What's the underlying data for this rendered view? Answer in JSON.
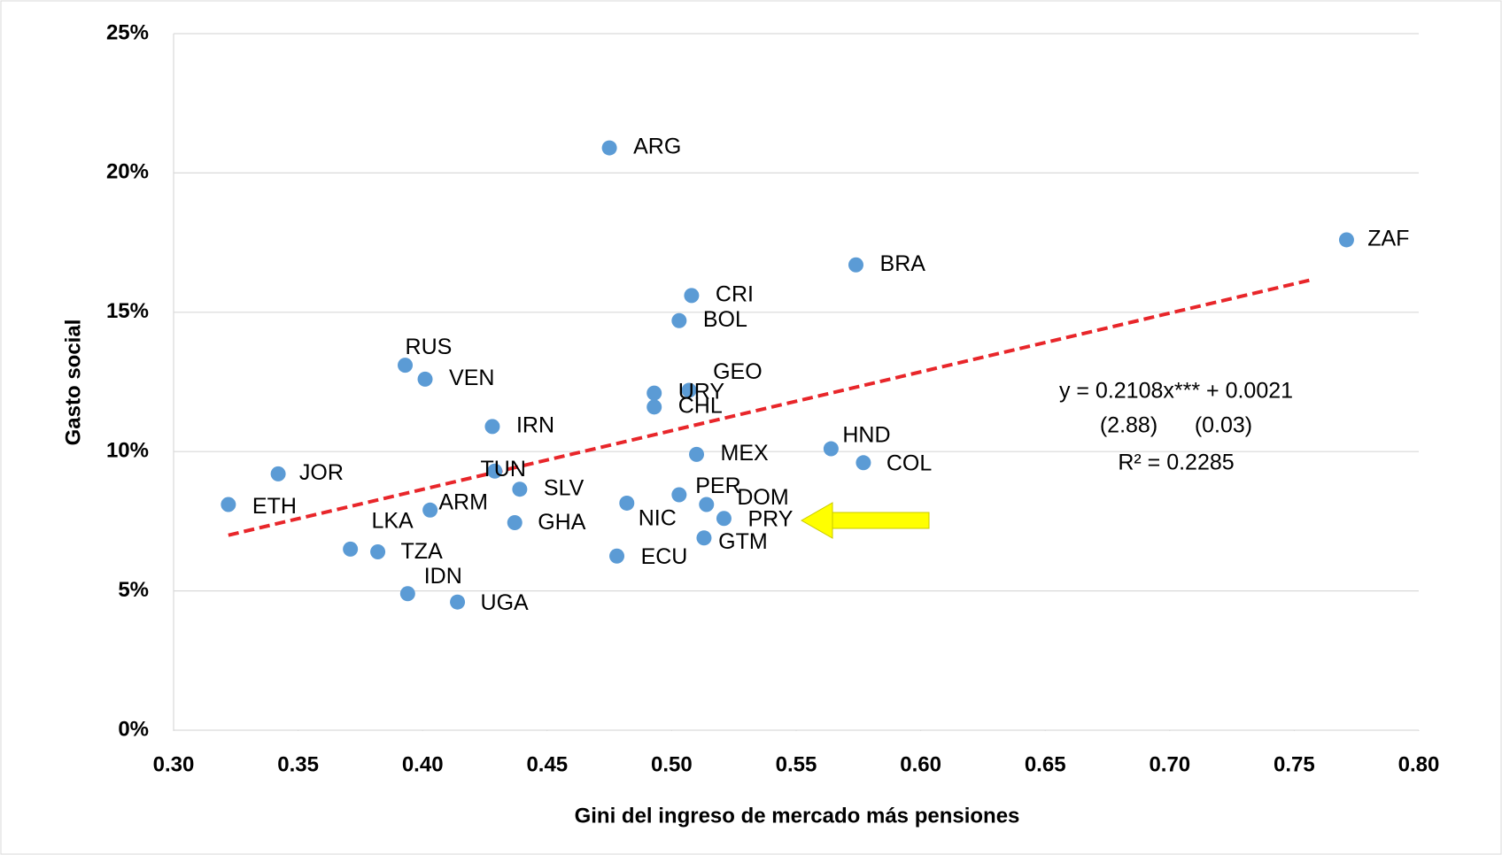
{
  "chart_data": {
    "type": "scatter",
    "x_label": "Gini del ingreso de mercado más pensiones",
    "y_label": "Gasto social",
    "xlim": [
      0.3,
      0.8
    ],
    "xticks": [
      {
        "value": 0.3,
        "label": "0.30"
      },
      {
        "value": 0.35,
        "label": "0.35"
      },
      {
        "value": 0.4,
        "label": "0.40"
      },
      {
        "value": 0.45,
        "label": "0.45"
      },
      {
        "value": 0.5,
        "label": "0.50"
      },
      {
        "value": 0.55,
        "label": "0.55"
      },
      {
        "value": 0.6,
        "label": "0.60"
      },
      {
        "value": 0.65,
        "label": "0.65"
      },
      {
        "value": 0.7,
        "label": "0.70"
      },
      {
        "value": 0.75,
        "label": "0.75"
      },
      {
        "value": 0.8,
        "label": "0.80"
      }
    ],
    "ylim": [
      0,
      25
    ],
    "yticks": [
      {
        "value": 0,
        "label": "0%"
      },
      {
        "value": 5,
        "label": "5%"
      },
      {
        "value": 10,
        "label": "10%"
      },
      {
        "value": 15,
        "label": "15%"
      },
      {
        "value": 20,
        "label": "20%"
      },
      {
        "value": 25,
        "label": "25%"
      }
    ],
    "grid": true,
    "series": [
      {
        "color": "#5b9bd5",
        "labels": [
          "ARG",
          "ZAF",
          "BRA",
          "CRI",
          "BOL",
          "RUS",
          "VEN",
          "GEO",
          "URY",
          "CHL",
          "IRN",
          "HND",
          "MEX",
          "COL",
          "JOR",
          "TUN",
          "SLV",
          "ETH",
          "PER",
          "NIC",
          "DOM",
          "ARM",
          "PRY",
          "GHA",
          "GTM",
          "LKA",
          "TZA",
          "ECU",
          "IDN",
          "UGA"
        ],
        "x": [
          0.475,
          0.771,
          0.574,
          0.508,
          0.503,
          0.393,
          0.401,
          0.507,
          0.493,
          0.493,
          0.428,
          0.564,
          0.51,
          0.577,
          0.342,
          0.429,
          0.439,
          0.322,
          0.503,
          0.482,
          0.514,
          0.403,
          0.521,
          0.437,
          0.513,
          0.371,
          0.382,
          0.478,
          0.394,
          0.414
        ],
        "values": [
          20.9,
          17.6,
          16.7,
          15.6,
          14.7,
          13.1,
          12.6,
          12.2,
          12.1,
          11.6,
          10.9,
          10.1,
          9.9,
          9.6,
          9.2,
          9.3,
          8.65,
          8.1,
          8.45,
          8.15,
          8.1,
          7.9,
          7.6,
          7.45,
          6.9,
          6.5,
          6.4,
          6.25,
          4.9,
          4.6
        ]
      }
    ],
    "trendline": {
      "color": "#e8262a",
      "x": [
        0.322,
        0.758
      ],
      "values": [
        7.0,
        16.19
      ]
    },
    "annotations": [
      "y = 0.2108x*** + 0.0021",
      "(2.88)      (0.03)",
      "R² = 0.2285"
    ]
  }
}
